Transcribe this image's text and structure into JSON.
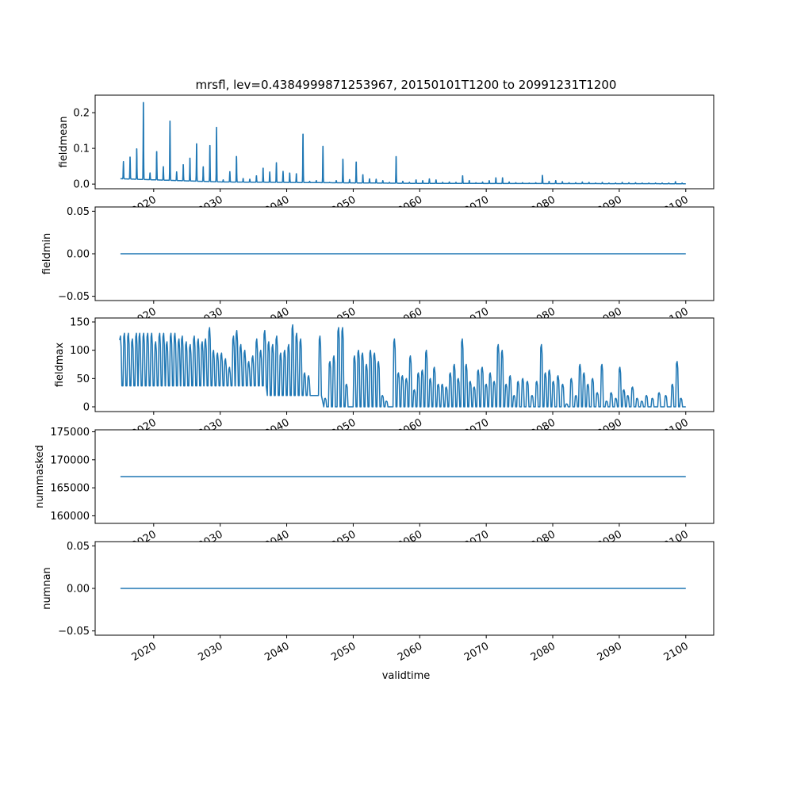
{
  "chart_data": {
    "type": "line",
    "title": "mrsfl, lev=0.4384999871253967, 20150101T1200 to 20991231T1200",
    "xlabel": "validtime",
    "xlim": [
      2011.2,
      2104.2
    ],
    "xticks": [
      "2020",
      "2030",
      "2040",
      "2050",
      "2060",
      "2070",
      "2080",
      "2090",
      "2100"
    ],
    "line_color": "#1f77b4",
    "panels": [
      {
        "ylabel": "fieldmean",
        "ylim": [
          -0.013,
          0.249
        ],
        "yticks": [
          "0.0",
          "0.1",
          "0.2"
        ],
        "ytick_values": [
          0.0,
          0.1,
          0.2
        ],
        "kind": "annual_peaks",
        "start_year": 2015,
        "baseline": [
          [
            2015,
            0.015
          ],
          [
            2030,
            0.006
          ],
          [
            2060,
            0.002
          ],
          [
            2100,
            0.001
          ]
        ],
        "annual_peaks": [
          0.065,
          0.078,
          0.102,
          0.237,
          0.032,
          0.094,
          0.05,
          0.183,
          0.035,
          0.056,
          0.075,
          0.117,
          0.05,
          0.112,
          0.165,
          0.012,
          0.036,
          0.08,
          0.016,
          0.014,
          0.024,
          0.046,
          0.035,
          0.062,
          0.037,
          0.032,
          0.03,
          0.145,
          0.008,
          0.01,
          0.11,
          0.005,
          0.01,
          0.072,
          0.013,
          0.064,
          0.027,
          0.015,
          0.014,
          0.01,
          0.005,
          0.08,
          0.008,
          0.005,
          0.012,
          0.01,
          0.015,
          0.012,
          0.005,
          0.006,
          0.005,
          0.024,
          0.01,
          0.004,
          0.006,
          0.01,
          0.018,
          0.018,
          0.006,
          0.004,
          0.004,
          0.003,
          0.004,
          0.025,
          0.008,
          0.01,
          0.007,
          0.004,
          0.004,
          0.006,
          0.005,
          0.003,
          0.005,
          0.003,
          0.003,
          0.005,
          0.004,
          0.004,
          0.003,
          0.003,
          0.003,
          0.003,
          0.003,
          0.007,
          0.003
        ]
      },
      {
        "ylabel": "fieldmin",
        "ylim": [
          -0.055,
          0.055
        ],
        "yticks": [
          "−0.05",
          "0.00",
          "0.05"
        ],
        "ytick_values": [
          -0.05,
          0.0,
          0.05
        ],
        "kind": "constant",
        "value": 0.0
      },
      {
        "ylabel": "fieldmax",
        "ylim": [
          -8.4,
          157
        ],
        "yticks": [
          "0",
          "50",
          "100",
          "150"
        ],
        "ytick_values": [
          0,
          50,
          100,
          150
        ],
        "kind": "peaks",
        "baseline": [
          [
            2015,
            2036.8,
            37
          ],
          [
            2036.8,
            2045.5,
            20
          ],
          [
            2045.5,
            2100,
            0
          ]
        ],
        "peaks": [
          [
            2015.0,
            125
          ],
          [
            2015.6,
            130
          ],
          [
            2016.2,
            130
          ],
          [
            2016.8,
            120
          ],
          [
            2017.4,
            130
          ],
          [
            2017.9,
            130
          ],
          [
            2018.5,
            130
          ],
          [
            2019.1,
            130
          ],
          [
            2019.7,
            130
          ],
          [
            2020.3,
            115
          ],
          [
            2020.9,
            130
          ],
          [
            2021.5,
            130
          ],
          [
            2022.0,
            115
          ],
          [
            2022.6,
            130
          ],
          [
            2023.2,
            130
          ],
          [
            2023.8,
            120
          ],
          [
            2024.3,
            125
          ],
          [
            2024.9,
            115
          ],
          [
            2025.5,
            110
          ],
          [
            2026.1,
            125
          ],
          [
            2026.7,
            120
          ],
          [
            2027.3,
            115
          ],
          [
            2027.8,
            120
          ],
          [
            2028.4,
            140
          ],
          [
            2029.0,
            100
          ],
          [
            2029.6,
            95
          ],
          [
            2030.2,
            95
          ],
          [
            2030.8,
            85
          ],
          [
            2031.4,
            70
          ],
          [
            2032.0,
            125
          ],
          [
            2032.5,
            135
          ],
          [
            2033.1,
            110
          ],
          [
            2033.7,
            100
          ],
          [
            2034.3,
            80
          ],
          [
            2034.9,
            90
          ],
          [
            2035.5,
            120
          ],
          [
            2036.1,
            100
          ],
          [
            2036.7,
            135
          ],
          [
            2037.3,
            115
          ],
          [
            2037.9,
            110
          ],
          [
            2038.5,
            125
          ],
          [
            2039.1,
            95
          ],
          [
            2039.7,
            100
          ],
          [
            2040.3,
            110
          ],
          [
            2040.9,
            145
          ],
          [
            2041.5,
            130
          ],
          [
            2042.1,
            120
          ],
          [
            2042.7,
            60
          ],
          [
            2043.3,
            55
          ],
          [
            2045.0,
            125
          ],
          [
            2045.8,
            15
          ],
          [
            2046.5,
            80
          ],
          [
            2047.1,
            90
          ],
          [
            2047.8,
            140
          ],
          [
            2048.4,
            140
          ],
          [
            2049.0,
            40
          ],
          [
            2050.2,
            90
          ],
          [
            2050.8,
            100
          ],
          [
            2051.4,
            95
          ],
          [
            2052.0,
            75
          ],
          [
            2052.6,
            100
          ],
          [
            2053.2,
            95
          ],
          [
            2053.8,
            80
          ],
          [
            2054.4,
            20
          ],
          [
            2055.0,
            10
          ],
          [
            2056.2,
            120
          ],
          [
            2056.8,
            60
          ],
          [
            2057.4,
            55
          ],
          [
            2058.0,
            50
          ],
          [
            2058.6,
            90
          ],
          [
            2059.2,
            30
          ],
          [
            2059.8,
            60
          ],
          [
            2060.4,
            65
          ],
          [
            2061.0,
            100
          ],
          [
            2061.6,
            50
          ],
          [
            2062.2,
            70
          ],
          [
            2062.8,
            40
          ],
          [
            2063.4,
            40
          ],
          [
            2064.0,
            35
          ],
          [
            2064.6,
            60
          ],
          [
            2065.2,
            75
          ],
          [
            2065.8,
            50
          ],
          [
            2066.4,
            120
          ],
          [
            2067.0,
            75
          ],
          [
            2067.6,
            45
          ],
          [
            2068.2,
            35
          ],
          [
            2068.8,
            65
          ],
          [
            2069.4,
            70
          ],
          [
            2070.0,
            40
          ],
          [
            2070.6,
            60
          ],
          [
            2071.2,
            45
          ],
          [
            2071.8,
            110
          ],
          [
            2072.4,
            100
          ],
          [
            2073.0,
            40
          ],
          [
            2073.6,
            55
          ],
          [
            2074.2,
            20
          ],
          [
            2074.8,
            45
          ],
          [
            2075.5,
            50
          ],
          [
            2076.2,
            45
          ],
          [
            2076.9,
            20
          ],
          [
            2077.6,
            45
          ],
          [
            2078.3,
            110
          ],
          [
            2078.9,
            60
          ],
          [
            2079.5,
            65
          ],
          [
            2080.1,
            45
          ],
          [
            2080.8,
            55
          ],
          [
            2081.5,
            40
          ],
          [
            2082.1,
            5
          ],
          [
            2082.8,
            50
          ],
          [
            2083.5,
            20
          ],
          [
            2084.1,
            75
          ],
          [
            2084.7,
            60
          ],
          [
            2085.3,
            40
          ],
          [
            2086.0,
            50
          ],
          [
            2086.7,
            25
          ],
          [
            2087.4,
            75
          ],
          [
            2088.1,
            10
          ],
          [
            2088.8,
            25
          ],
          [
            2089.5,
            15
          ],
          [
            2090.1,
            70
          ],
          [
            2090.7,
            30
          ],
          [
            2091.3,
            20
          ],
          [
            2092.0,
            35
          ],
          [
            2092.7,
            15
          ],
          [
            2093.4,
            10
          ],
          [
            2094.1,
            20
          ],
          [
            2095.0,
            15
          ],
          [
            2096.0,
            25
          ],
          [
            2097.0,
            20
          ],
          [
            2098.0,
            40
          ],
          [
            2098.7,
            80
          ],
          [
            2099.3,
            15
          ]
        ]
      },
      {
        "ylabel": "nummasked",
        "ylim": [
          158650,
          175350
        ],
        "yticks": [
          "160000",
          "165000",
          "170000",
          "175000"
        ],
        "ytick_values": [
          160000,
          165000,
          170000,
          175000
        ],
        "kind": "constant",
        "value": 167000
      },
      {
        "ylabel": "numnan",
        "ylim": [
          -0.055,
          0.055
        ],
        "yticks": [
          "−0.05",
          "0.00",
          "0.05"
        ],
        "ytick_values": [
          -0.05,
          0.0,
          0.05
        ],
        "kind": "constant",
        "value": 0.0
      }
    ]
  }
}
